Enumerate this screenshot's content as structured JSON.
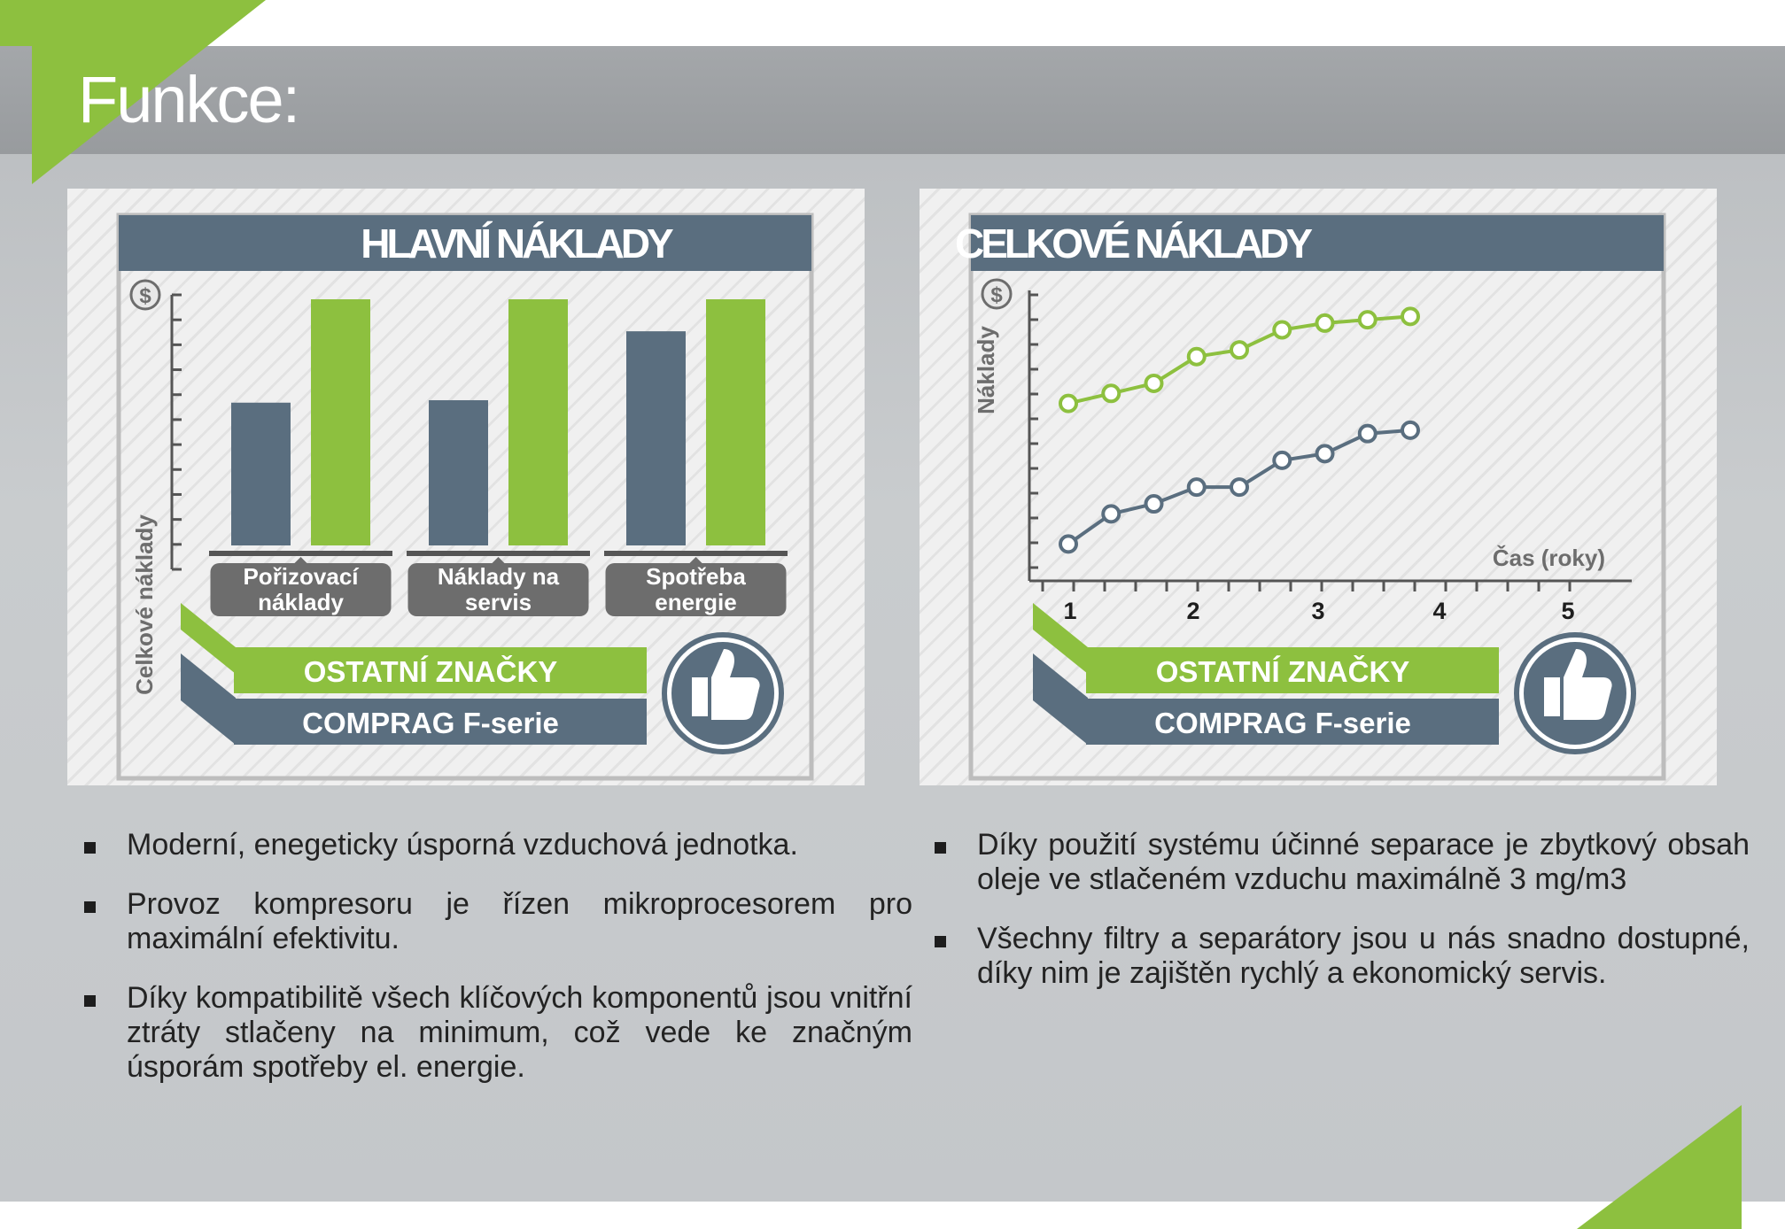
{
  "page": {
    "title": "Funkce:",
    "colors": {
      "green": "#8dc03f",
      "slate": "#5a6e7f",
      "gray": "#6d6d6d"
    }
  },
  "left_panel": {
    "title": "HLAVNÍ NÁKLADY",
    "axis_label": "Celkové náklady",
    "currency_icon": "dollar-icon",
    "legend": {
      "other": "OSTATNÍ ZNAČKY",
      "comprag": "COMPRAG F-serie"
    },
    "thumb_icon": "thumbs-up-icon"
  },
  "right_panel": {
    "title": "CELKOVÉ NÁKLADY",
    "axis_label": "Náklady",
    "currency_icon": "dollar-icon",
    "legend": {
      "other": "OSTATNÍ ZNAČKY",
      "comprag": "COMPRAG F-serie"
    },
    "thumb_icon": "thumbs-up-icon"
  },
  "bullets_left": [
    "Moderní, enegeticky úsporná vzduchová jednotka.",
    "Provoz kompresoru je řízen mikroprocesorem pro maximální efektivitu.",
    "Díky kompatibilitě všech klíčových komponentů jsou vnitřní ztráty stlačeny na minimum, což vede ke značným úsporám spotřeby el. energie."
  ],
  "bullets_right": [
    "Díky použití systému účinné separace je zbytkový obsah oleje ve stlačeném vzduchu maximálně 3 mg/m3",
    "Všechny filtry a separátory jsou u nás snadno dostupné, díky nim je zajištěn rychlý a ekonomický servis."
  ],
  "chart_data": [
    {
      "type": "bar",
      "title": "HLAVNÍ NÁKLADY",
      "ylabel": "Celkové náklady",
      "categories": [
        "Pořizovací náklady",
        "Náklady na servis",
        "Spotřeba energie"
      ],
      "category_lines": [
        [
          "Pořizovací",
          "náklady"
        ],
        [
          "Náklady na",
          "servis"
        ],
        [
          "Spotřeba",
          "energie"
        ]
      ],
      "series": [
        {
          "name": "COMPRAG F-serie",
          "color": "#5a6e7f",
          "values": [
            58,
            59,
            87
          ]
        },
        {
          "name": "OSTATNÍ ZNAČKY",
          "color": "#8dc03f",
          "values": [
            100,
            100,
            100
          ]
        }
      ],
      "ylim": [
        0,
        100
      ]
    },
    {
      "type": "line",
      "title": "CELKOVÉ NÁKLADY",
      "xlabel": "Čas (roky)",
      "ylabel": "Náklady",
      "x_tick_labels": [
        "1",
        "2",
        "3",
        "4",
        "5"
      ],
      "x": [
        1,
        1.5,
        2,
        2.5,
        3,
        3.5,
        4,
        4.5,
        5
      ],
      "series": [
        {
          "name": "OSTATNÍ ZNAČKY",
          "color": "#8dc03f",
          "values": [
            62,
            65,
            68,
            76,
            78,
            84,
            86,
            87,
            88
          ]
        },
        {
          "name": "COMPRAG F-serie",
          "color": "#5a6e7f",
          "values": [
            20,
            29,
            32,
            37,
            37,
            45,
            47,
            53,
            54
          ]
        }
      ],
      "ylim": [
        0,
        100
      ]
    }
  ]
}
